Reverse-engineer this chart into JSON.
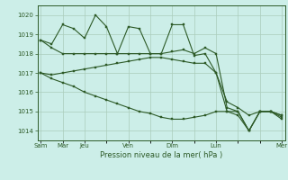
{
  "background_color": "#cceee8",
  "line_color": "#2d5a27",
  "grid_color": "#aaccbb",
  "title": "Pression niveau de la mer( hPa )",
  "ylim": [
    1013.5,
    1020.5
  ],
  "yticks": [
    1014,
    1015,
    1016,
    1017,
    1018,
    1019,
    1020
  ],
  "x_label_shown_pos": [
    0,
    2,
    4,
    8,
    12,
    16,
    22
  ],
  "x_label_shown_names": [
    "Sam",
    "Mar",
    "Jeu",
    "Ven",
    "Dim",
    "Lun",
    "Mer"
  ],
  "n_points": 23,
  "series1": [
    1018.7,
    1018.5,
    1019.5,
    1019.3,
    1018.8,
    1020.0,
    1019.4,
    1018.0,
    1019.4,
    1019.3,
    1018.0,
    1018.0,
    1019.5,
    1019.5,
    1017.9,
    1018.0,
    1017.0,
    1015.0,
    1015.0,
    1014.0,
    1015.0,
    1015.0,
    1014.7
  ],
  "series2": [
    1018.7,
    1018.3,
    1018.0,
    1018.0,
    1018.0,
    1018.0,
    1018.0,
    1018.0,
    1018.0,
    1018.0,
    1018.0,
    1018.0,
    1018.1,
    1018.2,
    1018.0,
    1018.3,
    1018.0,
    1015.2,
    1015.0,
    1014.0,
    1015.0,
    1015.0,
    1014.8
  ],
  "series3": [
    1017.0,
    1016.9,
    1017.0,
    1017.1,
    1017.2,
    1017.3,
    1017.4,
    1017.5,
    1017.6,
    1017.7,
    1017.8,
    1017.8,
    1017.7,
    1017.6,
    1017.5,
    1017.5,
    1017.0,
    1015.5,
    1015.2,
    1014.8,
    1015.0,
    1015.0,
    1014.8
  ],
  "series4": [
    1017.0,
    1016.7,
    1016.5,
    1016.3,
    1016.0,
    1015.8,
    1015.6,
    1015.4,
    1015.2,
    1015.0,
    1014.9,
    1014.7,
    1014.6,
    1014.6,
    1014.7,
    1014.8,
    1015.0,
    1015.0,
    1014.8,
    1014.0,
    1015.0,
    1015.0,
    1014.6
  ]
}
